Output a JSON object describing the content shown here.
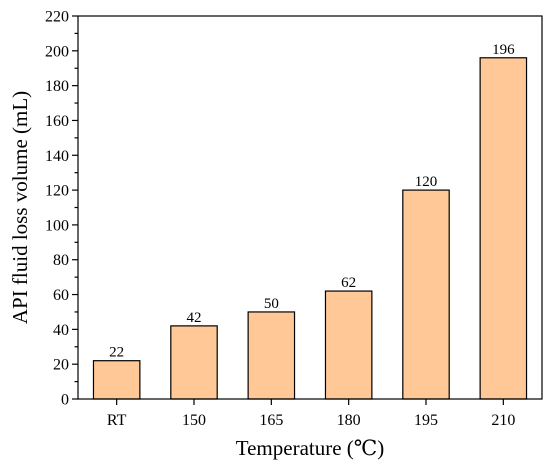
{
  "chart_data": {
    "type": "bar",
    "title": "",
    "xlabel": "Temperature (℃)",
    "ylabel": "API fluid loss volume (mL)",
    "categories": [
      "RT",
      "150",
      "165",
      "180",
      "195",
      "210"
    ],
    "values": [
      22,
      42,
      50,
      62,
      120,
      196
    ],
    "data_labels": [
      "22",
      "42",
      "50",
      "62",
      "120",
      "196"
    ],
    "ylim": [
      0,
      220
    ],
    "yticks": [
      0,
      20,
      40,
      60,
      80,
      100,
      120,
      140,
      160,
      180,
      200,
      220
    ],
    "grid": false,
    "legend": "none",
    "colors": {
      "bar_fill": "#FFC896",
      "bar_stroke": "#000000",
      "axis": "#000000"
    }
  }
}
